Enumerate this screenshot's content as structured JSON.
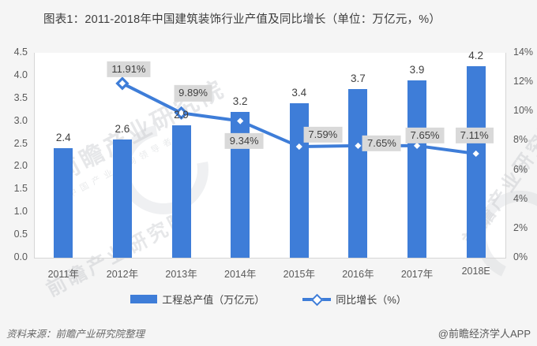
{
  "page": {
    "title": "图表1：2011-2018年中国建筑装饰行业产值及同比增长（单位：万亿元，%）"
  },
  "chart_data": {
    "type": "bar+line",
    "categories": [
      "2011年",
      "2012年",
      "2013年",
      "2014年",
      "2015年",
      "2016年",
      "2017年",
      "2018E"
    ],
    "series": [
      {
        "name": "工程总产值（万亿元）",
        "type": "bar",
        "axis": "left",
        "color": "#3E7DD8",
        "values": [
          2.4,
          2.6,
          2.9,
          3.2,
          3.4,
          3.7,
          3.9,
          4.2
        ],
        "labels": [
          "2.4",
          "2.6",
          "2.9",
          "3.2",
          "3.4",
          "3.7",
          "3.9",
          "4.2"
        ]
      },
      {
        "name": "同比增长（%）",
        "type": "line",
        "axis": "right",
        "marker": "diamond",
        "color": "#3E7DD8",
        "values": [
          null,
          11.91,
          9.89,
          9.34,
          7.59,
          7.65,
          7.65,
          7.11
        ],
        "labels": [
          null,
          "11.91%",
          "9.89%",
          "9.34%",
          "7.59%",
          "7.65%",
          "7.65%",
          "7.11%"
        ]
      }
    ],
    "left_axis": {
      "min": 0,
      "max": 4.5,
      "step": 0.5,
      "ticks": [
        "4.5",
        "4.0",
        "3.5",
        "3.0",
        "2.5",
        "2.0",
        "1.5",
        "1.0",
        "0.5",
        "0.0"
      ]
    },
    "right_axis": {
      "min": 0,
      "max": 14,
      "step": 2,
      "ticks": [
        "14%",
        "12%",
        "10%",
        "8%",
        "6%",
        "4%",
        "2%",
        "0%"
      ]
    },
    "grid": false,
    "legend_position": "bottom"
  },
  "colors": {
    "series_blue": "#3E7DD8",
    "label_box_bg": "#D9D9D9",
    "label_text": "#404040",
    "axis_text": "#595959",
    "plot_bg": "#FFFFFF",
    "page_bg": "#F5F5F5"
  },
  "watermark": {
    "text": "前瞻产业研究院",
    "subtext": "中国产业咨询领导者"
  },
  "footer": {
    "source": "资料来源：前瞻产业研究院整理",
    "brand": "@前瞻经济学人APP"
  }
}
